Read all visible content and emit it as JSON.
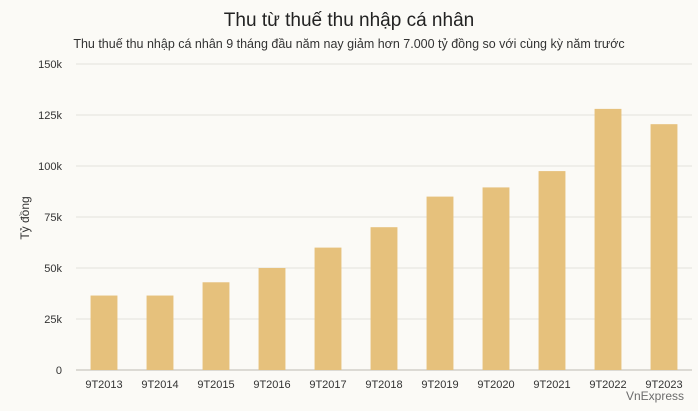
{
  "chart_data": {
    "type": "bar",
    "title": "Thu từ thuế thu nhập cá nhân",
    "subtitle": "Thu thuế thu nhập cá nhân 9 tháng đầu năm nay giảm hơn 7.000 tỷ đồng so với cùng kỳ năm trước",
    "ylabel": "Tỷ đồng",
    "xlabel": "",
    "categories": [
      "9T2013",
      "9T2014",
      "9T2015",
      "9T2016",
      "9T2017",
      "9T2018",
      "9T2019",
      "9T2020",
      "9T2021",
      "9T2022",
      "9T2023"
    ],
    "values": [
      36500,
      36500,
      43000,
      50000,
      60000,
      70000,
      85000,
      89500,
      97500,
      128000,
      120500
    ],
    "ylim": [
      0,
      150000
    ],
    "yticks": [
      0,
      25000,
      50000,
      75000,
      100000,
      125000,
      150000
    ],
    "ytick_labels": [
      "0",
      "25k",
      "50k",
      "75k",
      "100k",
      "125k",
      "150k"
    ],
    "grid": true,
    "bar_color": "#e6c17c",
    "grid_color": "#e3e1dc"
  },
  "watermark": "VnExpress"
}
